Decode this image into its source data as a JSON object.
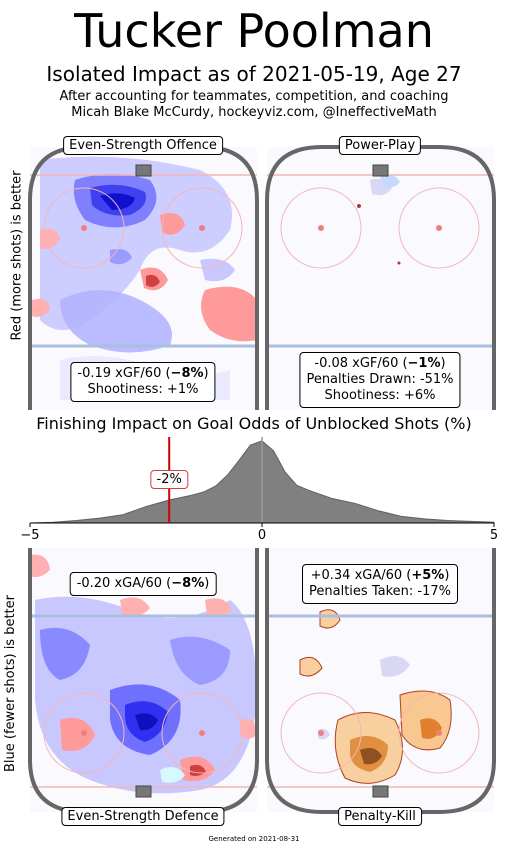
{
  "header": {
    "player_name": "Tucker Poolman",
    "subtitle": "Isolated Impact as of 2021-05-19, Age 27",
    "line1": "After accounting for teammates, competition, and coaching",
    "line2": "Micah Blake McCurdy, hockeyviz.com, @IneffectiveMath"
  },
  "axes": {
    "offence_side_label": "Red (more shots) is better",
    "defence_side_label": "Blue (fewer shots) is better"
  },
  "panels": {
    "es_offence": {
      "label": "Even-Strength Offence",
      "xg_rate": "-0.19 xGF/60 (",
      "xg_pct": "−8%",
      "xg_close": ")",
      "extra1": "Shootiness: +1%"
    },
    "power_play": {
      "label": "Power-Play",
      "xg_rate": "-0.08 xGF/60 (",
      "xg_pct": "−1%",
      "xg_close": ")",
      "extra1": "Penalties Drawn: -51%",
      "extra2": "Shootiness: +6%"
    },
    "es_defence": {
      "label": "Even-Strength Defence",
      "xg_rate": "-0.20 xGA/60 (",
      "xg_pct": "−8%",
      "xg_close": ")"
    },
    "penalty_kill": {
      "label": "Penalty-Kill",
      "xg_rate": "+0.34 xGA/60 (",
      "xg_pct": "+5%",
      "xg_close": ")",
      "extra1": "Penalties Taken: -17%"
    }
  },
  "colors": {
    "rink_border": "#666666",
    "blue_line": "#a8bfdf",
    "red_line": "#f4b6b6",
    "more_shots": "#ff7a7a",
    "fewer_shots": "#4040ff",
    "pk_orange": "#f0a050",
    "kde_fill": "#808080",
    "marker": "#d00000"
  },
  "chart_data": {
    "type": "area",
    "title": "Finishing Impact on Goal Odds of Unblocked Shots (%)",
    "xlim": [
      -5,
      5
    ],
    "xticks": [
      "−5",
      "0",
      "5"
    ],
    "player_marker": {
      "value": -2,
      "label": "-2%"
    },
    "x": [
      -5,
      -4.5,
      -4,
      -3.5,
      -3,
      -2.5,
      -2,
      -1.5,
      -1.25,
      -1,
      -0.75,
      -0.5,
      -0.25,
      0,
      0.25,
      0.5,
      0.75,
      1,
      1.5,
      2,
      2.5,
      3,
      3.5,
      4,
      4.5,
      5
    ],
    "density": [
      0.0,
      0.01,
      0.03,
      0.06,
      0.1,
      0.2,
      0.28,
      0.34,
      0.38,
      0.45,
      0.58,
      0.76,
      0.95,
      1.0,
      0.88,
      0.62,
      0.46,
      0.4,
      0.3,
      0.24,
      0.15,
      0.08,
      0.05,
      0.03,
      0.02,
      0.01
    ]
  }
}
